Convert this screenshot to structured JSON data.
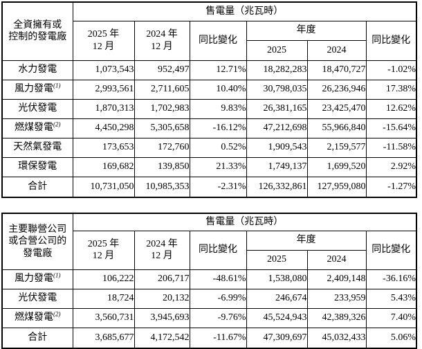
{
  "page": {
    "background_color": "#ffffff",
    "text_color": "#000000",
    "border_color": "#000000"
  },
  "tables": [
    {
      "row_header_lines": [
        "全資擁有或",
        "控制的發電廠"
      ],
      "header": {
        "group_title": "售電量（兆瓦時）",
        "month_2025_lines": [
          "2025 年",
          "12 月"
        ],
        "month_2024_lines": [
          "2024 年",
          "12 月"
        ],
        "mom_change": "同比變化",
        "year_group": "年度",
        "year_2025": "2025",
        "year_2024": "2024",
        "yoy_change": "同比變化"
      },
      "rows": [
        {
          "label": "水力發電",
          "cells": [
            "1,073,543",
            "952,497",
            "12.71%",
            "18,282,283",
            "18,470,727",
            "-1.02%"
          ]
        },
        {
          "label": "風力發電",
          "sup": "(1)",
          "cells": [
            "2,993,561",
            "2,711,605",
            "10.40%",
            "30,798,035",
            "26,236,946",
            "17.38%"
          ]
        },
        {
          "label": "光伏發電",
          "cells": [
            "1,870,313",
            "1,702,983",
            "9.83%",
            "26,381,165",
            "23,425,470",
            "12.62%"
          ]
        },
        {
          "label": "燃煤發電",
          "sup": "(2)",
          "cells": [
            "4,450,298",
            "5,305,658",
            "-16.12%",
            "47,212,698",
            "55,966,840",
            "-15.64%"
          ]
        },
        {
          "label": "天然氣發電",
          "cells": [
            "173,653",
            "172,760",
            "0.52%",
            "1,909,543",
            "2,159,577",
            "-11.58%"
          ]
        },
        {
          "label": "環保發電",
          "cells": [
            "169,682",
            "139,850",
            "21.33%",
            "1,749,137",
            "1,699,520",
            "2.92%"
          ]
        },
        {
          "label": "合計",
          "is_total": true,
          "cells": [
            "10,731,050",
            "10,985,353",
            "-2.31%",
            "126,332,861",
            "127,959,080",
            "-1.27%"
          ]
        }
      ]
    },
    {
      "row_header_lines": [
        "主要聯營公司",
        "或合營公司的",
        "發電廠"
      ],
      "header": {
        "group_title": "售電量（兆瓦時）",
        "month_2025_lines": [
          "2025 年",
          "12 月"
        ],
        "month_2024_lines": [
          "2024 年",
          "12 月"
        ],
        "mom_change": "同比變化",
        "year_group": "年度",
        "year_2025": "2025",
        "year_2024": "2024",
        "yoy_change": "同比變化"
      },
      "rows": [
        {
          "label": "風力發電",
          "sup": "(1)",
          "cells": [
            "106,222",
            "206,717",
            "-48.61%",
            "1,538,080",
            "2,409,148",
            "-36.16%"
          ]
        },
        {
          "label": "光伏發電",
          "cells": [
            "18,724",
            "20,132",
            "-6.99%",
            "246,674",
            "233,959",
            "5.43%"
          ]
        },
        {
          "label": "燃煤發電",
          "sup": "(2)",
          "cells": [
            "3,560,731",
            "3,945,693",
            "-9.76%",
            "45,524,943",
            "42,389,326",
            "7.40%"
          ]
        },
        {
          "label": "合計",
          "is_total": true,
          "cells": [
            "3,685,677",
            "4,172,542",
            "-11.67%",
            "47,309,697",
            "45,032,433",
            "5.06%"
          ]
        }
      ]
    }
  ]
}
